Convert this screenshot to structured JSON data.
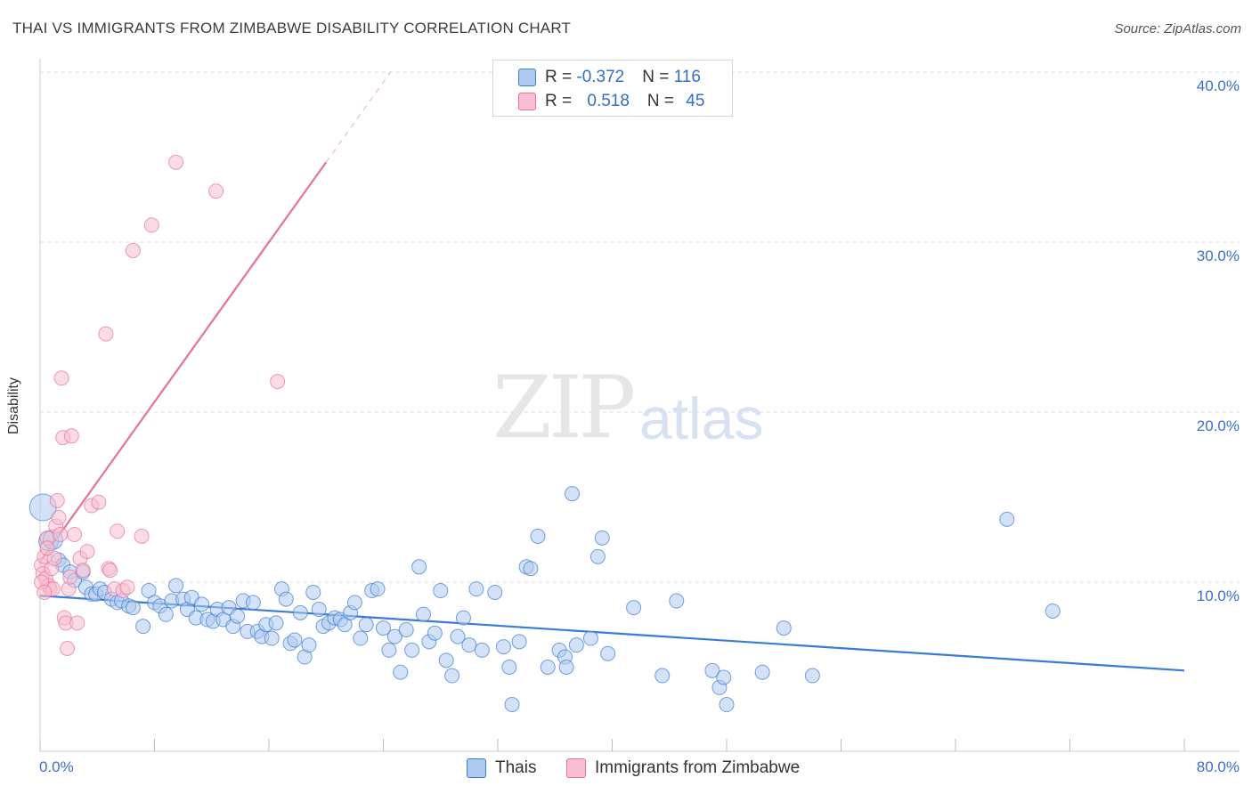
{
  "title": "THAI VS IMMIGRANTS FROM ZIMBABWE DISABILITY CORRELATION CHART",
  "source": "Source: ZipAtlas.com",
  "watermark": {
    "zip": "ZIP",
    "atlas": "atlas"
  },
  "colors": {
    "blue": "#3a7bd5",
    "blue_fill": "#aecbef",
    "pink": "#e8709a",
    "pink_fill": "#f7bfd0",
    "axis_text": "#3a70c8",
    "grid": "#dcdcdc"
  },
  "legend": {
    "blue": {
      "r_label": "R = ",
      "r_value": "-0.372",
      "n_label": "N = ",
      "n_value": "116"
    },
    "pink": {
      "r_label": "R = ",
      "r_value": "0.518",
      "n_label": "N = ",
      "n_value": "45"
    }
  },
  "bottom_legend": {
    "series1": "Thais",
    "series2": "Immigrants from Zimbabwe"
  },
  "chart_data": {
    "type": "scatter",
    "title": "THAI VS IMMIGRANTS FROM ZIMBABWE DISABILITY CORRELATION CHART",
    "xlabel": "",
    "ylabel": "Disability",
    "xlim": [
      0,
      80
    ],
    "ylim": [
      0,
      40
    ],
    "x_tick_labels": [
      "0.0%",
      "80.0%"
    ],
    "y_ticks": [
      10,
      20,
      30,
      40
    ],
    "y_tick_labels": [
      "10.0%",
      "20.0%",
      "30.0%",
      "40.0%"
    ],
    "grid": true,
    "legend_position": "top-center",
    "series": [
      {
        "name": "Thais",
        "color": "#3a7bd5",
        "R": -0.372,
        "N": 116,
        "trend": {
          "x": [
            0,
            80
          ],
          "y": [
            9.2,
            4.8
          ]
        },
        "points": [
          [
            0.2,
            14.4
          ],
          [
            0.6,
            12.4
          ],
          [
            0.9,
            12.5
          ],
          [
            1.3,
            11.3
          ],
          [
            1.6,
            11.0
          ],
          [
            2.1,
            10.6
          ],
          [
            2.4,
            10.1
          ],
          [
            3.0,
            10.6
          ],
          [
            3.2,
            9.7
          ],
          [
            3.6,
            9.3
          ],
          [
            3.9,
            9.3
          ],
          [
            4.2,
            9.6
          ],
          [
            4.5,
            9.4
          ],
          [
            5.0,
            9.0
          ],
          [
            5.4,
            8.8
          ],
          [
            5.7,
            8.9
          ],
          [
            6.2,
            8.6
          ],
          [
            6.5,
            8.5
          ],
          [
            7.2,
            7.4
          ],
          [
            7.6,
            9.5
          ],
          [
            8.0,
            8.8
          ],
          [
            8.4,
            8.6
          ],
          [
            8.8,
            8.1
          ],
          [
            9.2,
            8.9
          ],
          [
            9.5,
            9.8
          ],
          [
            10.0,
            9.0
          ],
          [
            10.3,
            8.4
          ],
          [
            10.6,
            9.1
          ],
          [
            10.9,
            7.9
          ],
          [
            11.3,
            8.7
          ],
          [
            11.7,
            7.8
          ],
          [
            12.1,
            7.7
          ],
          [
            12.4,
            8.4
          ],
          [
            12.8,
            7.8
          ],
          [
            13.2,
            8.5
          ],
          [
            13.5,
            7.4
          ],
          [
            13.8,
            8.0
          ],
          [
            14.2,
            8.9
          ],
          [
            14.5,
            7.1
          ],
          [
            14.9,
            8.8
          ],
          [
            15.2,
            7.1
          ],
          [
            15.5,
            6.8
          ],
          [
            15.8,
            7.5
          ],
          [
            16.2,
            6.7
          ],
          [
            16.5,
            7.6
          ],
          [
            16.9,
            9.6
          ],
          [
            17.2,
            9.0
          ],
          [
            17.5,
            6.4
          ],
          [
            17.8,
            6.6
          ],
          [
            18.2,
            8.2
          ],
          [
            18.5,
            5.6
          ],
          [
            18.8,
            6.3
          ],
          [
            19.1,
            9.4
          ],
          [
            19.5,
            8.4
          ],
          [
            19.8,
            7.4
          ],
          [
            20.2,
            7.6
          ],
          [
            20.6,
            7.9
          ],
          [
            21.0,
            7.8
          ],
          [
            21.3,
            7.5
          ],
          [
            21.7,
            8.2
          ],
          [
            22.0,
            8.8
          ],
          [
            22.4,
            6.7
          ],
          [
            22.8,
            7.5
          ],
          [
            23.2,
            9.5
          ],
          [
            23.6,
            9.6
          ],
          [
            24.0,
            7.3
          ],
          [
            24.4,
            6.0
          ],
          [
            24.8,
            6.8
          ],
          [
            25.2,
            4.7
          ],
          [
            25.6,
            7.2
          ],
          [
            26.0,
            6.0
          ],
          [
            26.5,
            10.9
          ],
          [
            26.8,
            8.1
          ],
          [
            27.2,
            6.5
          ],
          [
            27.6,
            7.0
          ],
          [
            28.0,
            9.5
          ],
          [
            28.4,
            5.4
          ],
          [
            28.8,
            4.5
          ],
          [
            29.2,
            6.8
          ],
          [
            29.6,
            7.9
          ],
          [
            30.0,
            6.3
          ],
          [
            30.5,
            9.6
          ],
          [
            30.9,
            6.0
          ],
          [
            31.8,
            9.4
          ],
          [
            32.4,
            6.2
          ],
          [
            32.8,
            5.0
          ],
          [
            33.0,
            2.8
          ],
          [
            33.5,
            6.5
          ],
          [
            34.0,
            10.9
          ],
          [
            34.3,
            10.8
          ],
          [
            34.8,
            12.7
          ],
          [
            35.5,
            5.0
          ],
          [
            36.3,
            6.0
          ],
          [
            36.7,
            5.6
          ],
          [
            36.8,
            5.0
          ],
          [
            37.2,
            15.2
          ],
          [
            37.5,
            6.3
          ],
          [
            38.5,
            6.7
          ],
          [
            39.0,
            11.5
          ],
          [
            39.3,
            12.6
          ],
          [
            39.7,
            5.8
          ],
          [
            41.5,
            8.5
          ],
          [
            43.5,
            4.5
          ],
          [
            44.5,
            8.9
          ],
          [
            47.0,
            4.8
          ],
          [
            47.5,
            3.8
          ],
          [
            47.8,
            4.4
          ],
          [
            48.0,
            2.8
          ],
          [
            50.5,
            4.7
          ],
          [
            52.0,
            7.3
          ],
          [
            54.0,
            4.5
          ],
          [
            67.6,
            13.7
          ],
          [
            70.8,
            8.3
          ]
        ]
      },
      {
        "name": "Immigrants from Zimbabwe",
        "color": "#e8709a",
        "R": 0.518,
        "N": 45,
        "trend": {
          "x": [
            0,
            20
          ],
          "y": [
            11.2,
            34.7
          ]
        },
        "trend_dashed": {
          "x": [
            20,
            24.5
          ],
          "y": [
            34.7,
            40
          ]
        },
        "points": [
          [
            0.1,
            11.0
          ],
          [
            0.2,
            10.5
          ],
          [
            0.3,
            11.5
          ],
          [
            0.4,
            10.2
          ],
          [
            0.5,
            12.6
          ],
          [
            0.6,
            9.8
          ],
          [
            0.7,
            9.6
          ],
          [
            0.8,
            10.8
          ],
          [
            0.9,
            9.6
          ],
          [
            1.0,
            11.4
          ],
          [
            1.1,
            13.3
          ],
          [
            1.2,
            14.8
          ],
          [
            1.3,
            13.8
          ],
          [
            1.4,
            12.8
          ],
          [
            1.5,
            22.0
          ],
          [
            1.6,
            18.5
          ],
          [
            1.7,
            7.9
          ],
          [
            1.8,
            7.6
          ],
          [
            1.9,
            6.1
          ],
          [
            2.0,
            9.6
          ],
          [
            2.1,
            10.3
          ],
          [
            2.2,
            18.6
          ],
          [
            2.4,
            12.8
          ],
          [
            2.6,
            7.6
          ],
          [
            2.8,
            11.4
          ],
          [
            3.0,
            10.7
          ],
          [
            3.3,
            11.8
          ],
          [
            3.6,
            14.5
          ],
          [
            4.1,
            14.7
          ],
          [
            4.6,
            24.6
          ],
          [
            4.8,
            10.8
          ],
          [
            4.9,
            10.7
          ],
          [
            5.2,
            9.6
          ],
          [
            5.4,
            13.0
          ],
          [
            5.8,
            9.5
          ],
          [
            6.1,
            9.7
          ],
          [
            6.5,
            29.5
          ],
          [
            7.1,
            12.7
          ],
          [
            7.8,
            31.0
          ],
          [
            9.5,
            34.7
          ],
          [
            12.3,
            33.0
          ],
          [
            16.6,
            21.8
          ],
          [
            0.1,
            10.0
          ],
          [
            0.3,
            9.4
          ],
          [
            0.5,
            12.0
          ]
        ]
      }
    ]
  }
}
